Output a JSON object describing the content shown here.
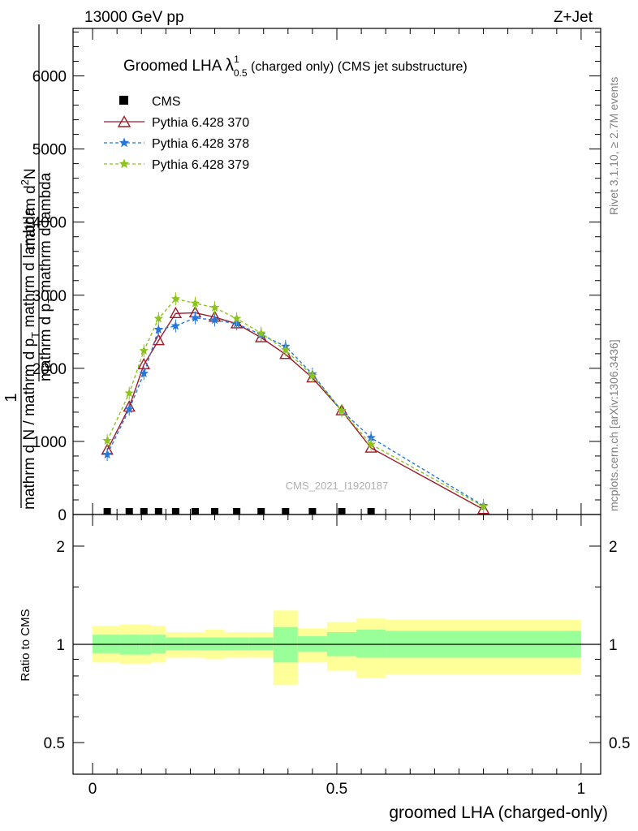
{
  "header": {
    "left": "13000 GeV pp",
    "right": "Z+Jet"
  },
  "side_labels": {
    "rivet": "Rivet 3.1.10, ≥ 2.7M events",
    "mcplots": "mcplots.cern.ch [arXiv:1306.3436]"
  },
  "watermark": "CMS_2021_I1920187",
  "y_axis_main": {
    "numerator_line1": "1",
    "line_mid": "mathrm d N / mathrm d p",
    "line_mid_sub": "T",
    "line_mid_tail": " mathrm d lambda",
    "line_top": "mathrm d",
    "line_top_sup": "2",
    "line_top_tail": "N",
    "line_den": "mathrm d p",
    "line_den_sub": "T",
    "line_den_tail": " mathrm d lambda"
  },
  "y_axis_ratio_label": "Ratio to CMS",
  "x_axis_label": "groomed LHA (charged-only)",
  "chart_data": [
    {
      "type": "line",
      "title_main": "Groomed LHA ",
      "title_lambda": "λ",
      "title_sup": "1",
      "title_sub": "0.5",
      "title_tail": " (charged only) (CMS jet substructure)",
      "xlim": [
        -0.04,
        1.04
      ],
      "ylim": [
        0,
        6650
      ],
      "yticks": [
        0,
        1000,
        2000,
        3000,
        4000,
        5000,
        6000
      ],
      "ytick_labels": [
        "0",
        "1000",
        "2000",
        "3000",
        "4000",
        "5000",
        "6000"
      ],
      "legend_placement": "top-left",
      "series": [
        {
          "name": "CMS",
          "color": "#000000",
          "marker": "square",
          "x": [
            0.03,
            0.075,
            0.105,
            0.135,
            0.17,
            0.21,
            0.25,
            0.295,
            0.345,
            0.395,
            0.45,
            0.51,
            0.57
          ],
          "y": [
            0,
            0,
            0,
            0,
            0,
            0,
            0,
            0,
            0,
            0,
            0,
            0,
            0
          ]
        },
        {
          "name": "Pythia 6.428 370",
          "color": "#9b1b2a",
          "marker": "open-triangle",
          "dashed": false,
          "x": [
            0.03,
            0.075,
            0.105,
            0.135,
            0.17,
            0.21,
            0.25,
            0.295,
            0.345,
            0.395,
            0.45,
            0.51,
            0.57,
            0.8
          ],
          "y": [
            880,
            1470,
            2050,
            2380,
            2750,
            2760,
            2700,
            2610,
            2420,
            2190,
            1870,
            1420,
            910,
            70
          ]
        },
        {
          "name": "Pythia 6.428 378",
          "color": "#2877d8",
          "marker": "star",
          "dashed": true,
          "x": [
            0.03,
            0.075,
            0.105,
            0.135,
            0.17,
            0.21,
            0.25,
            0.295,
            0.345,
            0.395,
            0.45,
            0.51,
            0.57,
            0.8
          ],
          "y": [
            820,
            1440,
            1930,
            2530,
            2580,
            2690,
            2660,
            2610,
            2460,
            2300,
            1920,
            1420,
            1050,
            120
          ]
        },
        {
          "name": "Pythia 6.428 379",
          "color": "#8ec21f",
          "marker": "star",
          "dashed": true,
          "x": [
            0.03,
            0.075,
            0.105,
            0.135,
            0.17,
            0.21,
            0.25,
            0.295,
            0.345,
            0.395,
            0.45,
            0.51,
            0.57,
            0.8
          ],
          "y": [
            1010,
            1660,
            2240,
            2680,
            2950,
            2890,
            2830,
            2680,
            2480,
            2250,
            1900,
            1420,
            960,
            110
          ]
        }
      ]
    },
    {
      "type": "area",
      "title": "",
      "ylabel": "Ratio to CMS",
      "xlim": [
        -0.04,
        1.04
      ],
      "ylim": [
        0.4,
        2.5
      ],
      "log_scale_y": true,
      "yticks": [
        0.5,
        1,
        2
      ],
      "ytick_labels": [
        "0.5",
        "1",
        "2"
      ],
      "xticks": [
        0,
        0.5,
        1
      ],
      "xtick_labels": [
        "0",
        "0.5",
        "1"
      ],
      "reference_line": 1,
      "bins": [
        {
          "x0": 0.0,
          "x1": 0.055,
          "stat_lo": 0.94,
          "stat_hi": 1.07,
          "tot_lo": 0.88,
          "tot_hi": 1.14
        },
        {
          "x0": 0.055,
          "x1": 0.095,
          "stat_lo": 0.93,
          "stat_hi": 1.07,
          "tot_lo": 0.87,
          "tot_hi": 1.15
        },
        {
          "x0": 0.095,
          "x1": 0.12,
          "stat_lo": 0.93,
          "stat_hi": 1.07,
          "tot_lo": 0.87,
          "tot_hi": 1.15
        },
        {
          "x0": 0.12,
          "x1": 0.15,
          "stat_lo": 0.94,
          "stat_hi": 1.07,
          "tot_lo": 0.88,
          "tot_hi": 1.14
        },
        {
          "x0": 0.15,
          "x1": 0.19,
          "stat_lo": 0.96,
          "stat_hi": 1.05,
          "tot_lo": 0.91,
          "tot_hi": 1.09
        },
        {
          "x0": 0.19,
          "x1": 0.23,
          "stat_lo": 0.96,
          "stat_hi": 1.05,
          "tot_lo": 0.91,
          "tot_hi": 1.09
        },
        {
          "x0": 0.23,
          "x1": 0.27,
          "stat_lo": 0.96,
          "stat_hi": 1.05,
          "tot_lo": 0.9,
          "tot_hi": 1.11
        },
        {
          "x0": 0.27,
          "x1": 0.32,
          "stat_lo": 0.96,
          "stat_hi": 1.05,
          "tot_lo": 0.91,
          "tot_hi": 1.09
        },
        {
          "x0": 0.32,
          "x1": 0.37,
          "stat_lo": 0.96,
          "stat_hi": 1.05,
          "tot_lo": 0.91,
          "tot_hi": 1.09
        },
        {
          "x0": 0.37,
          "x1": 0.42,
          "stat_lo": 0.88,
          "stat_hi": 1.13,
          "tot_lo": 0.75,
          "tot_hi": 1.27
        },
        {
          "x0": 0.42,
          "x1": 0.48,
          "stat_lo": 0.95,
          "stat_hi": 1.06,
          "tot_lo": 0.88,
          "tot_hi": 1.12
        },
        {
          "x0": 0.48,
          "x1": 0.54,
          "stat_lo": 0.92,
          "stat_hi": 1.09,
          "tot_lo": 0.83,
          "tot_hi": 1.17
        },
        {
          "x0": 0.54,
          "x1": 0.6,
          "stat_lo": 0.91,
          "stat_hi": 1.11,
          "tot_lo": 0.79,
          "tot_hi": 1.2
        },
        {
          "x0": 0.6,
          "x1": 1.0,
          "stat_lo": 0.91,
          "stat_hi": 1.1,
          "tot_lo": 0.81,
          "tot_hi": 1.19
        }
      ],
      "stat_color": "#99ff99",
      "total_color": "#ffff99"
    }
  ]
}
